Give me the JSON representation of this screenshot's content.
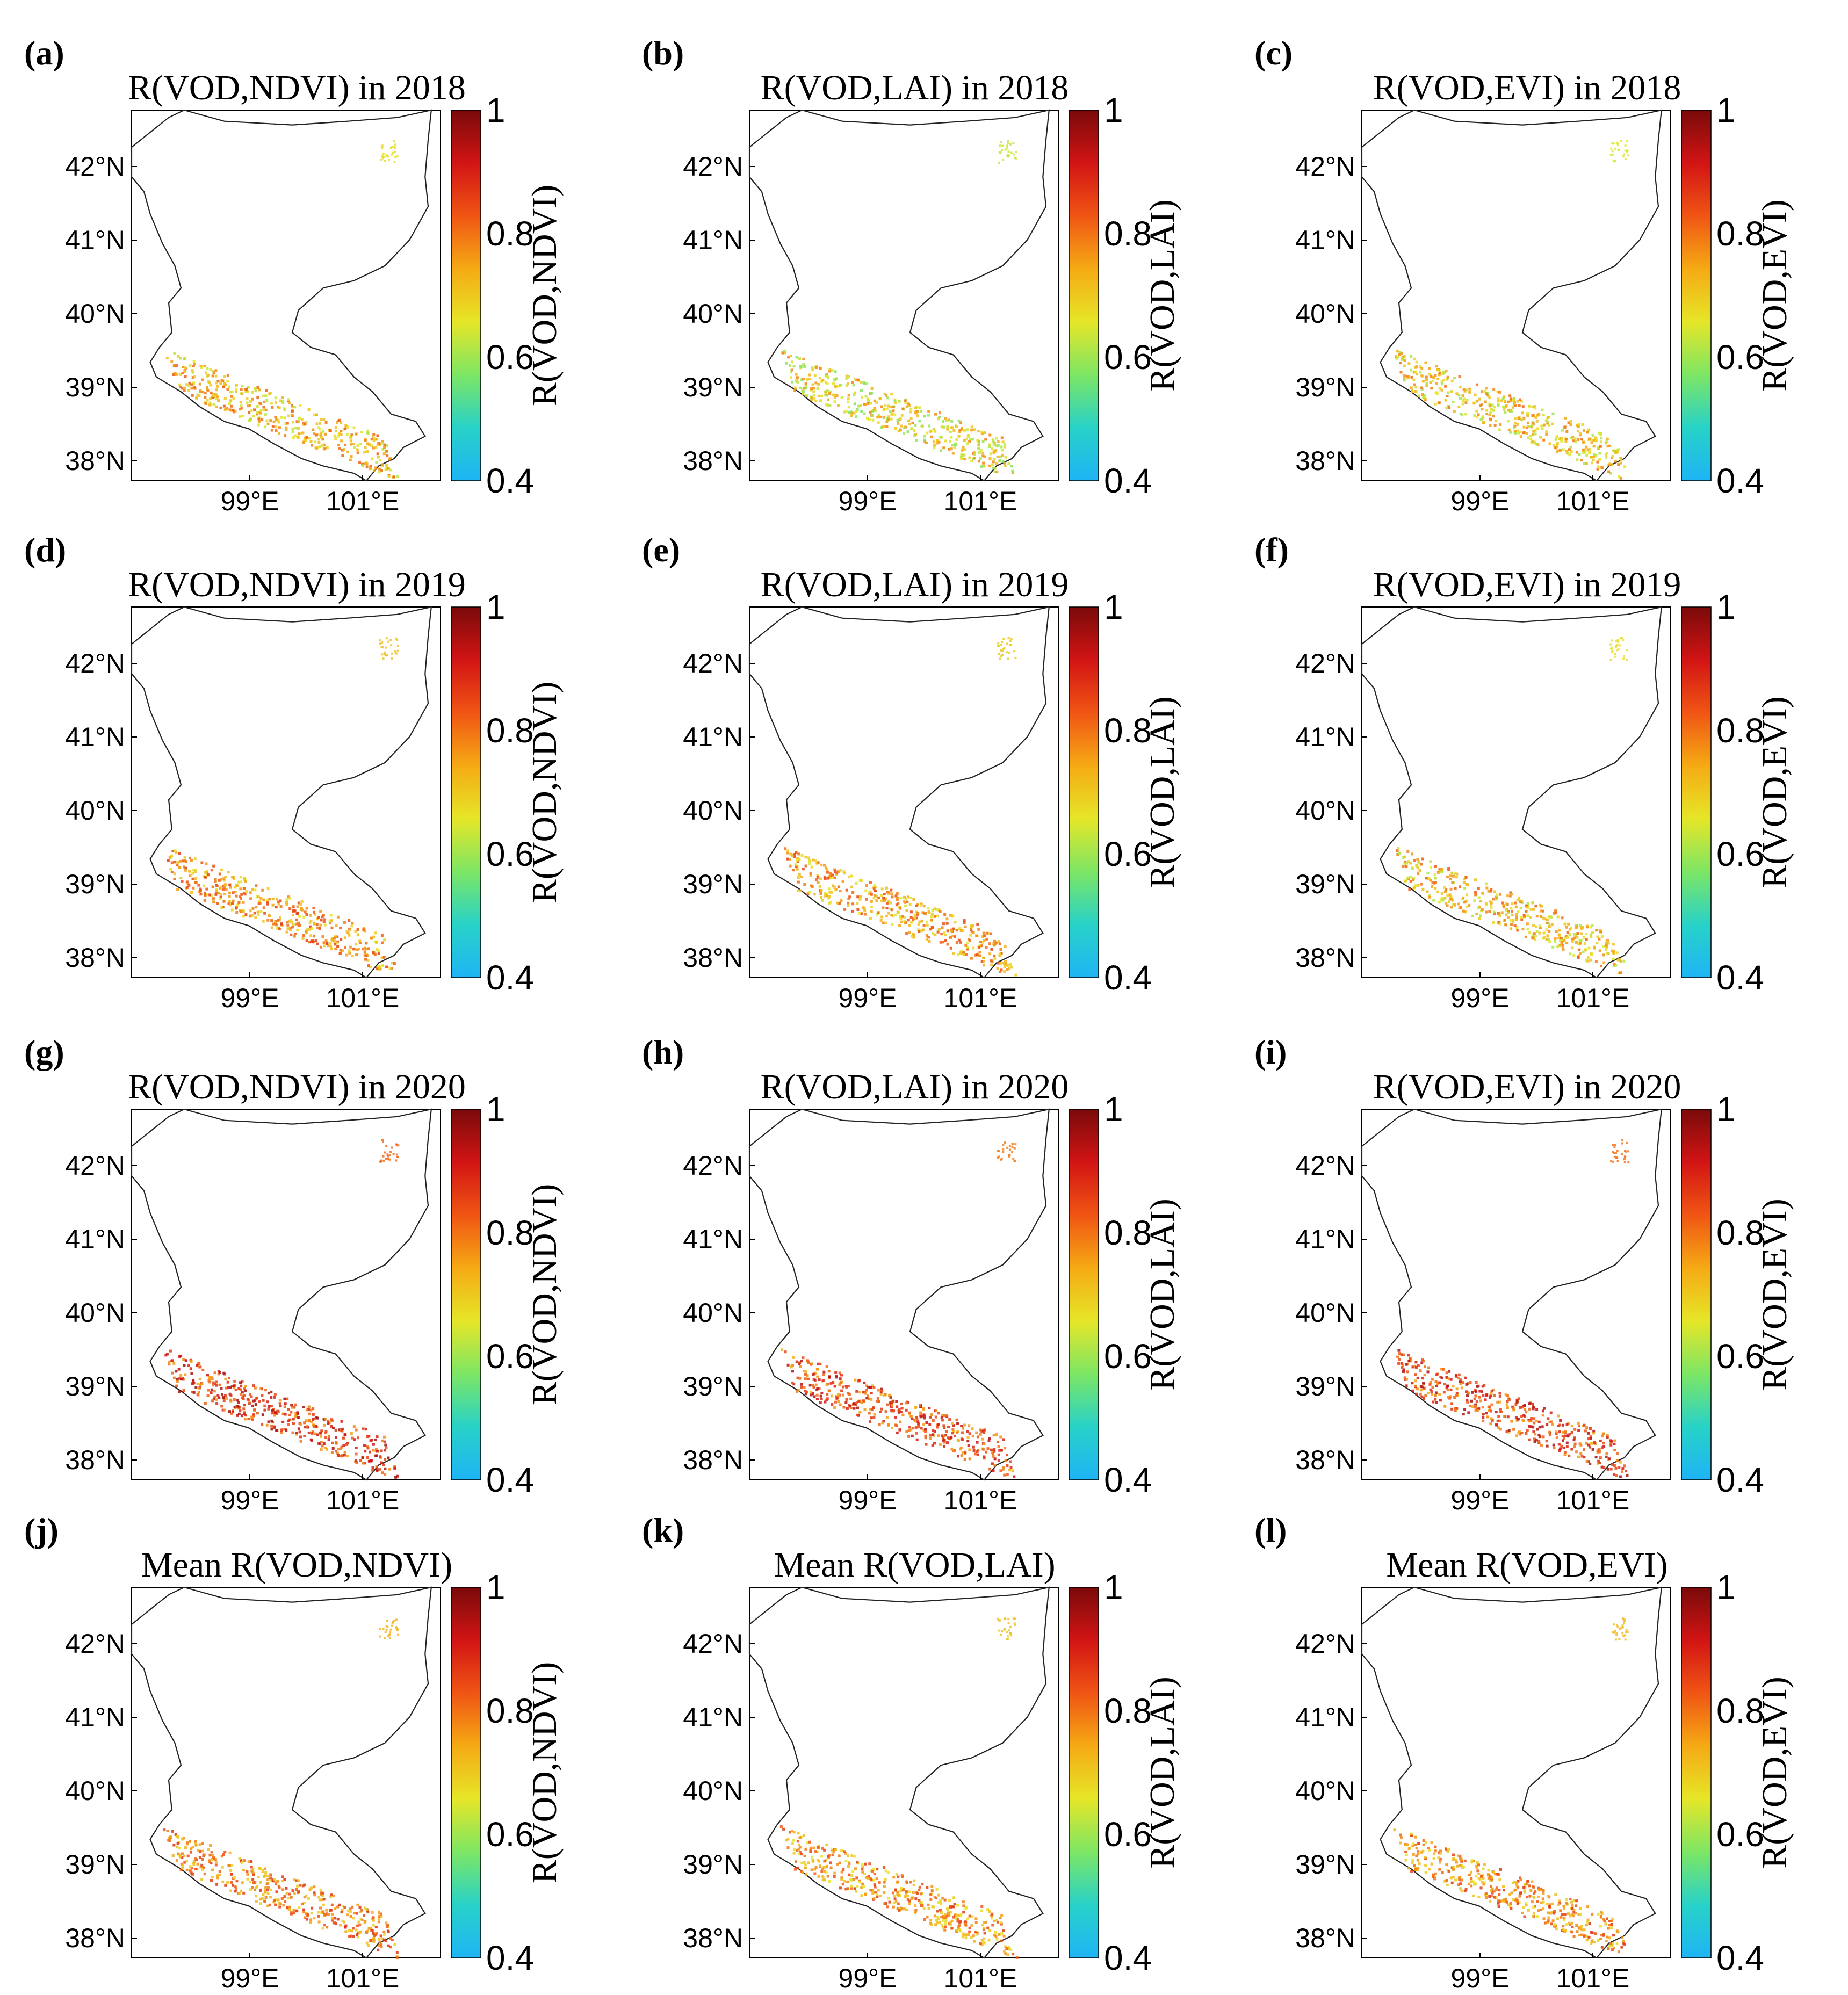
{
  "figure": {
    "lat_ticks": [
      "42°N",
      "41°N",
      "40°N",
      "39°N",
      "38°N"
    ],
    "lon_ticks": [
      "99°E",
      "101°E"
    ],
    "colorbar_ticks": [
      "1",
      "0.8",
      "0.6",
      "0.4"
    ],
    "colorbar_range": [
      0.4,
      1.0
    ],
    "colormap": [
      "#1EB4F5",
      "#28D2C8",
      "#7DE664",
      "#E6E628",
      "#F5AA14",
      "#F05514",
      "#D21414",
      "#7A0A0A"
    ]
  },
  "panels": [
    {
      "letter": "(a)",
      "title": "R(VOD,NDVI) in 2018",
      "cb_label": "R(VOD,NDVI)",
      "mean_r": 0.72
    },
    {
      "letter": "(b)",
      "title": "R(VOD,LAI) in 2018",
      "cb_label": "R(VOD,LAI)",
      "mean_r": 0.68
    },
    {
      "letter": "(c)",
      "title": "R(VOD,EVI) in 2018",
      "cb_label": "R(VOD,EVI)",
      "mean_r": 0.7
    },
    {
      "letter": "(d)",
      "title": "R(VOD,NDVI) in 2019",
      "cb_label": "R(VOD,NDVI)",
      "mean_r": 0.76
    },
    {
      "letter": "(e)",
      "title": "R(VOD,LAI) in 2019",
      "cb_label": "R(VOD,LAI)",
      "mean_r": 0.75
    },
    {
      "letter": "(f)",
      "title": "R(VOD,EVI) in 2019",
      "cb_label": "R(VOD,EVI)",
      "mean_r": 0.72
    },
    {
      "letter": "(g)",
      "title": "R(VOD,NDVI) in 2020",
      "cb_label": "R(VOD,NDVI)",
      "mean_r": 0.86
    },
    {
      "letter": "(h)",
      "title": "R(VOD,LAI) in 2020",
      "cb_label": "R(VOD,LAI)",
      "mean_r": 0.84
    },
    {
      "letter": "(i)",
      "title": "R(VOD,EVI) in 2020",
      "cb_label": "R(VOD,EVI)",
      "mean_r": 0.85
    },
    {
      "letter": "(j)",
      "title": "Mean R(VOD,NDVI)",
      "cb_label": "R(VOD,NDVI)",
      "mean_r": 0.78
    },
    {
      "letter": "(k)",
      "title": "Mean R(VOD,LAI)",
      "cb_label": "R(VOD,LAI)",
      "mean_r": 0.76
    },
    {
      "letter": "(l)",
      "title": "Mean R(VOD,EVI)",
      "cb_label": "R(VOD,EVI)",
      "mean_r": 0.77
    }
  ]
}
